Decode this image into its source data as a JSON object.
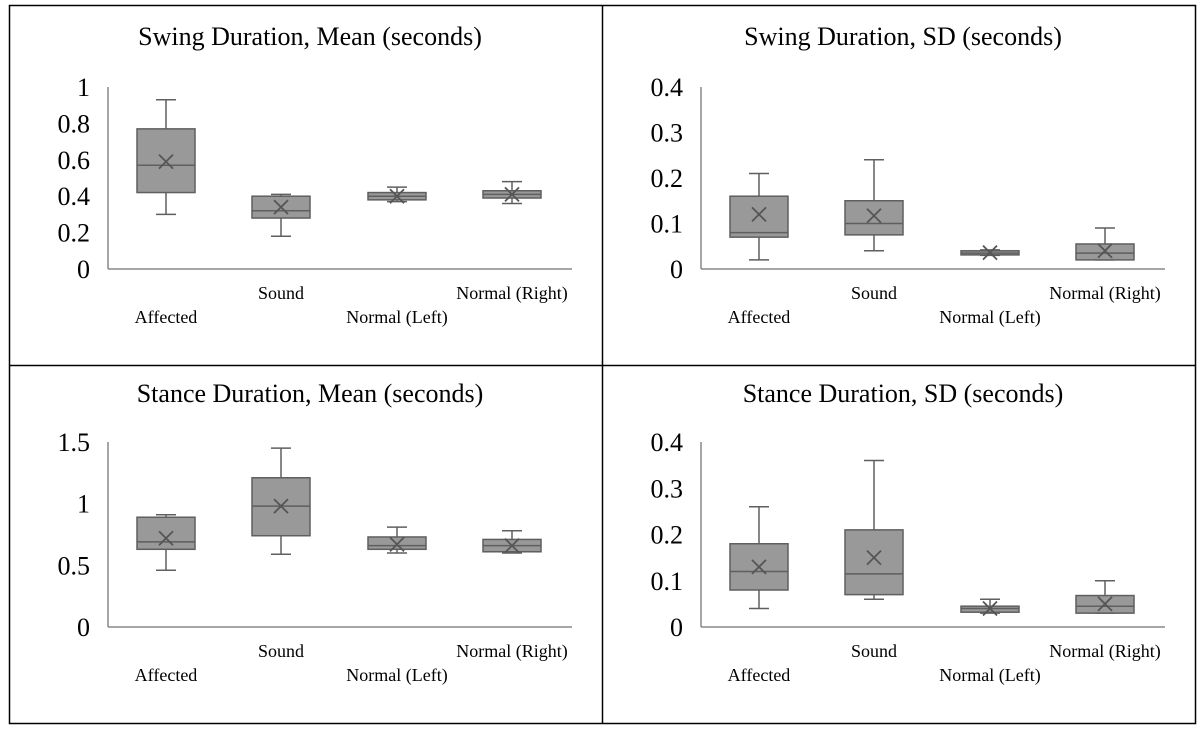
{
  "style": {
    "box_fill": "#999999",
    "box_stroke": "#5f5f5f",
    "axis": "#888888",
    "border": "#000000"
  },
  "panels": [
    {
      "title": "Swing Duration, Mean (seconds)",
      "chart_data": {
        "type": "box",
        "title": "Swing Duration, Mean (seconds)",
        "categories": [
          "Affected",
          "Sound",
          "Normal (Left)",
          "Normal (Right)"
        ],
        "y_ticks": [
          "0",
          "0.2",
          "0.4",
          "0.6",
          "0.8",
          "1"
        ],
        "ylim": [
          0,
          1
        ],
        "boxes": [
          {
            "min": 0.3,
            "q1": 0.42,
            "median": 0.57,
            "q3": 0.77,
            "max": 0.93,
            "mean": 0.59
          },
          {
            "min": 0.18,
            "q1": 0.28,
            "median": 0.32,
            "q3": 0.4,
            "max": 0.41,
            "mean": 0.34
          },
          {
            "min": 0.37,
            "q1": 0.38,
            "median": 0.4,
            "q3": 0.42,
            "max": 0.45,
            "mean": 0.4
          },
          {
            "min": 0.36,
            "q1": 0.39,
            "median": 0.41,
            "q3": 0.43,
            "max": 0.48,
            "mean": 0.41
          }
        ]
      }
    },
    {
      "title": "Swing Duration, SD (seconds)",
      "chart_data": {
        "type": "box",
        "title": "Swing Duration, SD (seconds)",
        "categories": [
          "Affected",
          "Sound",
          "Normal (Left)",
          "Normal (Right)"
        ],
        "y_ticks": [
          "0",
          "0.1",
          "0.2",
          "0.3",
          "0.4"
        ],
        "ylim": [
          0,
          0.4
        ],
        "boxes": [
          {
            "min": 0.02,
            "q1": 0.07,
            "median": 0.08,
            "q3": 0.16,
            "max": 0.21,
            "mean": 0.12
          },
          {
            "min": 0.04,
            "q1": 0.075,
            "median": 0.1,
            "q3": 0.15,
            "max": 0.24,
            "mean": 0.117
          },
          {
            "min": 0.03,
            "q1": 0.031,
            "median": 0.035,
            "q3": 0.04,
            "max": 0.042,
            "mean": 0.036
          },
          {
            "min": 0.02,
            "q1": 0.02,
            "median": 0.035,
            "q3": 0.055,
            "max": 0.09,
            "mean": 0.04
          }
        ]
      }
    },
    {
      "title": "Stance Duration, Mean (seconds)",
      "chart_data": {
        "type": "box",
        "title": "Stance Duration, Mean (seconds)",
        "categories": [
          "Affected",
          "Sound",
          "Normal (Left)",
          "Normal (Right)"
        ],
        "y_ticks": [
          "0",
          "0.5",
          "1",
          "1.5"
        ],
        "ylim": [
          0,
          1.5
        ],
        "boxes": [
          {
            "min": 0.46,
            "q1": 0.63,
            "median": 0.69,
            "q3": 0.89,
            "max": 0.91,
            "mean": 0.72
          },
          {
            "min": 0.59,
            "q1": 0.74,
            "median": 0.98,
            "q3": 1.21,
            "max": 1.45,
            "mean": 0.98
          },
          {
            "min": 0.6,
            "q1": 0.63,
            "median": 0.66,
            "q3": 0.73,
            "max": 0.81,
            "mean": 0.67
          },
          {
            "min": 0.6,
            "q1": 0.61,
            "median": 0.66,
            "q3": 0.71,
            "max": 0.78,
            "mean": 0.66
          }
        ]
      }
    },
    {
      "title": "Stance Duration, SD (seconds)",
      "chart_data": {
        "type": "box",
        "title": "Stance Duration, SD (seconds)",
        "categories": [
          "Affected",
          "Sound",
          "Normal (Left)",
          "Normal (Right)"
        ],
        "y_ticks": [
          "0",
          "0.1",
          "0.2",
          "0.3",
          "0.4"
        ],
        "ylim": [
          0,
          0.4
        ],
        "boxes": [
          {
            "min": 0.04,
            "q1": 0.08,
            "median": 0.12,
            "q3": 0.18,
            "max": 0.26,
            "mean": 0.13
          },
          {
            "min": 0.06,
            "q1": 0.07,
            "median": 0.115,
            "q3": 0.21,
            "max": 0.36,
            "mean": 0.15
          },
          {
            "min": 0.03,
            "q1": 0.032,
            "median": 0.04,
            "q3": 0.045,
            "max": 0.06,
            "mean": 0.04
          },
          {
            "min": 0.03,
            "q1": 0.03,
            "median": 0.045,
            "q3": 0.068,
            "max": 0.1,
            "mean": 0.05
          }
        ]
      }
    }
  ]
}
